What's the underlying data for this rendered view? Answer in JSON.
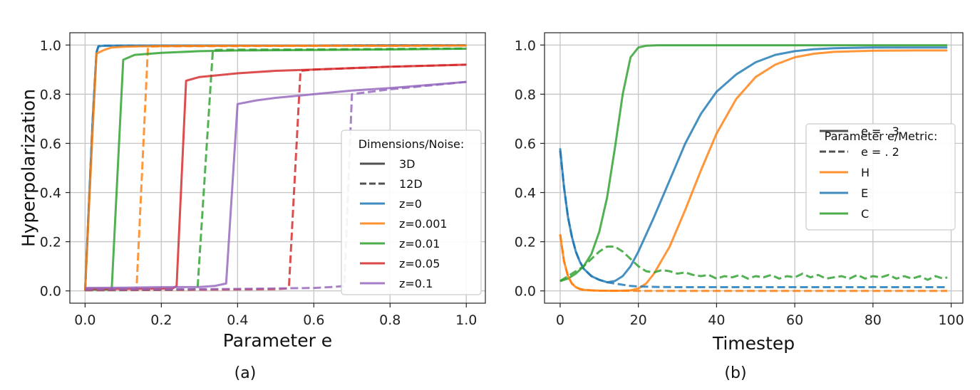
{
  "figure": {
    "panels": [
      {
        "caption": "(a)",
        "chart_data": {
          "type": "line",
          "xlabel": "Parameter e",
          "ylabel": "Hyperpolarization",
          "xlim": [
            -0.04,
            1.05
          ],
          "ylim": [
            -0.05,
            1.05
          ],
          "xticks": [
            "0.0",
            "0.2",
            "0.4",
            "0.6",
            "0.8",
            "1.0"
          ],
          "yticks": [
            "0.0",
            "0.2",
            "0.4",
            "0.6",
            "0.8",
            "1.0"
          ],
          "xtick_values": [
            0.0,
            0.2,
            0.4,
            0.6,
            0.8,
            1.0
          ],
          "ytick_values": [
            0.0,
            0.2,
            0.4,
            0.6,
            0.8,
            1.0
          ],
          "grid": true,
          "legend_title": "Dimensions/Noise:",
          "legend_location": "lower-right",
          "legend": [
            {
              "label": "3D",
              "style": "solid",
              "color": "#333333"
            },
            {
              "label": "12D",
              "style": "dashed",
              "color": "#333333"
            },
            {
              "label": "z=0",
              "style": "solid",
              "color": "#1f77b4"
            },
            {
              "label": "z=0.001",
              "style": "solid",
              "color": "#ff7f0e"
            },
            {
              "label": "z=0.01",
              "style": "solid",
              "color": "#2ca02c"
            },
            {
              "label": "z=0.05",
              "style": "solid",
              "color": "#d62728"
            },
            {
              "label": "z=0.1",
              "style": "solid",
              "color": "#9467bd"
            }
          ],
          "series": [
            {
              "color": "#1f77b4",
              "dash": false,
              "x": [
                0,
                0.01,
                0.02,
                0.03,
                0.035,
                0.05,
                0.1,
                0.2,
                0.4,
                0.6,
                0.8,
                1.0
              ],
              "y": [
                0.0,
                0.35,
                0.7,
                0.97,
                0.995,
                0.997,
                0.998,
                0.998,
                0.998,
                0.998,
                0.999,
                0.999
              ]
            },
            {
              "color": "#1f77b4",
              "dash": true,
              "x": [
                0,
                0.01,
                0.02,
                0.03,
                0.035,
                0.05,
                0.1,
                0.2,
                0.4,
                0.6,
                0.8,
                1.0
              ],
              "y": [
                0.0,
                0.35,
                0.7,
                0.97,
                0.995,
                0.997,
                0.998,
                0.998,
                0.998,
                0.998,
                0.999,
                0.999
              ]
            },
            {
              "color": "#ff7f0e",
              "dash": false,
              "x": [
                0,
                0.01,
                0.02,
                0.03,
                0.05,
                0.07,
                0.1,
                0.15,
                0.2,
                0.4,
                0.6,
                0.8,
                1.0
              ],
              "y": [
                0.0,
                0.33,
                0.66,
                0.965,
                0.98,
                0.99,
                0.993,
                0.995,
                0.996,
                0.997,
                0.997,
                0.997,
                0.998
              ]
            },
            {
              "color": "#ff7f0e",
              "dash": true,
              "x": [
                0,
                0.05,
                0.1,
                0.13,
                0.135,
                0.165,
                0.17,
                0.2,
                0.4,
                0.6,
                0.8,
                1.0
              ],
              "y": [
                0.003,
                0.003,
                0.004,
                0.005,
                0.01,
                0.99,
                0.994,
                0.995,
                0.996,
                0.997,
                0.997,
                0.998
              ]
            },
            {
              "color": "#2ca02c",
              "dash": false,
              "x": [
                0,
                0.05,
                0.065,
                0.07,
                0.1,
                0.13,
                0.2,
                0.3,
                0.4,
                0.6,
                0.8,
                1.0
              ],
              "y": [
                0.005,
                0.005,
                0.006,
                0.01,
                0.94,
                0.96,
                0.968,
                0.975,
                0.978,
                0.98,
                0.982,
                0.985
              ]
            },
            {
              "color": "#2ca02c",
              "dash": true,
              "x": [
                0,
                0.1,
                0.2,
                0.28,
                0.295,
                0.335,
                0.34,
                0.4,
                0.6,
                0.8,
                1.0
              ],
              "y": [
                0.003,
                0.003,
                0.004,
                0.005,
                0.01,
                0.978,
                0.98,
                0.981,
                0.982,
                0.984,
                0.986
              ]
            },
            {
              "color": "#d62728",
              "dash": false,
              "x": [
                0,
                0.1,
                0.2,
                0.23,
                0.24,
                0.265,
                0.3,
                0.4,
                0.5,
                0.6,
                0.8,
                1.0
              ],
              "y": [
                0.008,
                0.008,
                0.009,
                0.01,
                0.02,
                0.855,
                0.87,
                0.885,
                0.895,
                0.9,
                0.912,
                0.92
              ]
            },
            {
              "color": "#d62728",
              "dash": true,
              "x": [
                0,
                0.2,
                0.4,
                0.5,
                0.53,
                0.535,
                0.565,
                0.6,
                0.8,
                1.0
              ],
              "y": [
                0.003,
                0.004,
                0.006,
                0.007,
                0.01,
                0.02,
                0.895,
                0.9,
                0.912,
                0.92
              ]
            },
            {
              "color": "#9467bd",
              "dash": false,
              "x": [
                0,
                0.1,
                0.2,
                0.3,
                0.34,
                0.37,
                0.4,
                0.45,
                0.5,
                0.6,
                0.7,
                0.8,
                1.0
              ],
              "y": [
                0.012,
                0.013,
                0.015,
                0.016,
                0.02,
                0.03,
                0.76,
                0.775,
                0.785,
                0.8,
                0.815,
                0.825,
                0.85
              ]
            },
            {
              "color": "#9467bd",
              "dash": true,
              "x": [
                0,
                0.2,
                0.4,
                0.6,
                0.65,
                0.68,
                0.7,
                0.75,
                0.8,
                1.0
              ],
              "y": [
                0.004,
                0.006,
                0.008,
                0.012,
                0.016,
                0.02,
                0.8,
                0.81,
                0.82,
                0.85
              ]
            }
          ]
        }
      },
      {
        "caption": "(b)",
        "chart_data": {
          "type": "line",
          "xlabel": "Timestep",
          "ylabel": "",
          "xlim": [
            -4,
            103
          ],
          "ylim": [
            -0.05,
            1.05
          ],
          "xticks": [
            "0",
            "20",
            "40",
            "60",
            "80",
            "100"
          ],
          "yticks": [
            "0.0",
            "0.2",
            "0.4",
            "0.6",
            "0.8",
            "1.0"
          ],
          "xtick_values": [
            0,
            20,
            40,
            60,
            80,
            100
          ],
          "ytick_values": [
            0.0,
            0.2,
            0.4,
            0.6,
            0.8,
            1.0
          ],
          "grid": true,
          "legend_title": "Parameter e/Metric:",
          "legend_location": "center-right",
          "legend": [
            {
              "label": "e = . 3",
              "style": "solid",
              "color": "#333333"
            },
            {
              "label": "e = . 2",
              "style": "dashed",
              "color": "#333333"
            },
            {
              "label": "H",
              "style": "solid",
              "color": "#ff7f0e"
            },
            {
              "label": "E",
              "style": "solid",
              "color": "#1f77b4"
            },
            {
              "label": "C",
              "style": "solid",
              "color": "#2ca02c"
            }
          ],
          "series": [
            {
              "color": "#2ca02c",
              "dash": false,
              "x": [
                0,
                2,
                4,
                6,
                8,
                10,
                12,
                14,
                16,
                18,
                20,
                22,
                25,
                30,
                40,
                60,
                80,
                99
              ],
              "y": [
                0.04,
                0.05,
                0.07,
                0.1,
                0.15,
                0.24,
                0.38,
                0.58,
                0.8,
                0.95,
                0.99,
                0.997,
                0.999,
                0.999,
                0.999,
                0.999,
                0.999,
                0.999
              ]
            },
            {
              "color": "#1f77b4",
              "dash": false,
              "x": [
                0,
                1,
                2,
                3,
                4,
                5,
                6,
                8,
                10,
                12,
                14,
                16,
                18,
                20,
                24,
                28,
                32,
                36,
                40,
                45,
                50,
                55,
                60,
                65,
                70,
                80,
                90,
                99
              ],
              "y": [
                0.58,
                0.42,
                0.3,
                0.22,
                0.16,
                0.12,
                0.09,
                0.06,
                0.045,
                0.035,
                0.04,
                0.06,
                0.1,
                0.16,
                0.3,
                0.45,
                0.6,
                0.72,
                0.81,
                0.88,
                0.93,
                0.96,
                0.975,
                0.983,
                0.987,
                0.99,
                0.99,
                0.99
              ]
            },
            {
              "color": "#ff7f0e",
              "dash": false,
              "x": [
                0,
                1,
                2,
                3,
                4,
                5,
                6,
                8,
                10,
                14,
                18,
                20,
                22,
                24,
                28,
                32,
                36,
                40,
                45,
                50,
                55,
                60,
                65,
                70,
                80,
                90,
                99
              ],
              "y": [
                0.23,
                0.12,
                0.06,
                0.03,
                0.015,
                0.008,
                0.004,
                0.002,
                0.001,
                0.0,
                0.002,
                0.01,
                0.03,
                0.07,
                0.18,
                0.33,
                0.49,
                0.64,
                0.78,
                0.87,
                0.92,
                0.95,
                0.965,
                0.972,
                0.977,
                0.978,
                0.978
              ]
            },
            {
              "color": "#1f77b4",
              "dash": true,
              "x": [
                0,
                1,
                2,
                3,
                4,
                5,
                6,
                8,
                10,
                12,
                14,
                16,
                18,
                20,
                25,
                30,
                40,
                60,
                80,
                99
              ],
              "y": [
                0.57,
                0.42,
                0.3,
                0.22,
                0.16,
                0.12,
                0.09,
                0.06,
                0.045,
                0.035,
                0.03,
                0.025,
                0.02,
                0.018,
                0.016,
                0.015,
                0.015,
                0.015,
                0.015,
                0.015
              ]
            },
            {
              "color": "#ff7f0e",
              "dash": true,
              "x": [
                0,
                1,
                2,
                3,
                4,
                5,
                6,
                8,
                10,
                20,
                40,
                60,
                80,
                99
              ],
              "y": [
                0.23,
                0.12,
                0.06,
                0.03,
                0.015,
                0.008,
                0.004,
                0.002,
                0.001,
                0.0,
                0.0,
                0.0,
                0.0,
                0.0
              ]
            },
            {
              "color": "#2ca02c",
              "dash": true,
              "x": [
                0,
                2,
                4,
                6,
                8,
                10,
                12,
                14,
                16,
                18,
                20,
                22,
                24,
                26,
                28,
                30,
                32,
                34,
                36,
                38,
                40,
                42,
                44,
                46,
                48,
                50,
                52,
                54,
                56,
                58,
                60,
                62,
                64,
                66,
                68,
                70,
                72,
                74,
                76,
                78,
                80,
                82,
                84,
                86,
                88,
                90,
                92,
                94,
                96,
                98,
                99
              ],
              "y": [
                0.04,
                0.06,
                0.08,
                0.1,
                0.13,
                0.16,
                0.18,
                0.18,
                0.16,
                0.13,
                0.1,
                0.08,
                0.075,
                0.085,
                0.08,
                0.07,
                0.075,
                0.065,
                0.06,
                0.065,
                0.05,
                0.06,
                0.055,
                0.065,
                0.05,
                0.06,
                0.055,
                0.065,
                0.05,
                0.06,
                0.055,
                0.07,
                0.055,
                0.065,
                0.05,
                0.055,
                0.06,
                0.05,
                0.065,
                0.05,
                0.06,
                0.055,
                0.065,
                0.05,
                0.06,
                0.05,
                0.06,
                0.045,
                0.06,
                0.05,
                0.055
              ]
            }
          ]
        }
      }
    ]
  }
}
